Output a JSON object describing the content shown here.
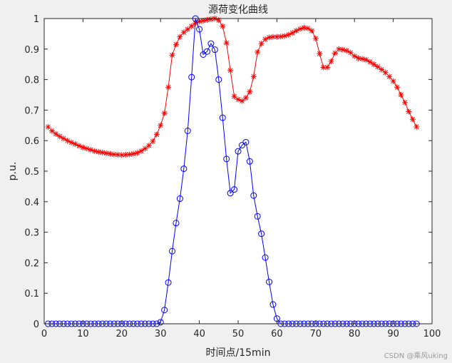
{
  "chart_data": {
    "type": "line",
    "title": "源荷变化曲线",
    "xlabel": "时间点/15min",
    "ylabel": "p.u.",
    "xlim": [
      0,
      100
    ],
    "ylim": [
      0,
      1
    ],
    "x_ticks": [
      "0",
      "10",
      "20",
      "30",
      "40",
      "50",
      "60",
      "70",
      "80",
      "90",
      "100"
    ],
    "y_ticks": [
      "0",
      "0.1",
      "0.2",
      "0.3",
      "0.4",
      "0.5",
      "0.6",
      "0.7",
      "0.8",
      "0.9",
      "1"
    ],
    "grid": false,
    "legend": "none",
    "x": [
      1,
      2,
      3,
      4,
      5,
      6,
      7,
      8,
      9,
      10,
      11,
      12,
      13,
      14,
      15,
      16,
      17,
      18,
      19,
      20,
      21,
      22,
      23,
      24,
      25,
      26,
      27,
      28,
      29,
      30,
      31,
      32,
      33,
      34,
      35,
      36,
      37,
      38,
      39,
      40,
      41,
      42,
      43,
      44,
      45,
      46,
      47,
      48,
      49,
      50,
      51,
      52,
      53,
      54,
      55,
      56,
      57,
      58,
      59,
      60,
      61,
      62,
      63,
      64,
      65,
      66,
      67,
      68,
      69,
      70,
      71,
      72,
      73,
      74,
      75,
      76,
      77,
      78,
      79,
      80,
      81,
      82,
      83,
      84,
      85,
      86,
      87,
      88,
      89,
      90,
      91,
      92,
      93,
      94,
      95,
      96
    ],
    "series": [
      {
        "color": "#ff0000",
        "marker": "asterisk",
        "values": [
          0.645,
          0.632,
          0.622,
          0.614,
          0.607,
          0.6,
          0.594,
          0.589,
          0.583,
          0.578,
          0.574,
          0.57,
          0.566,
          0.563,
          0.561,
          0.559,
          0.557,
          0.555,
          0.554,
          0.553,
          0.554,
          0.555,
          0.557,
          0.56,
          0.566,
          0.574,
          0.584,
          0.598,
          0.62,
          0.65,
          0.69,
          0.775,
          0.88,
          0.915,
          0.94,
          0.955,
          0.965,
          0.975,
          0.985,
          0.99,
          0.993,
          0.996,
          0.998,
          1.0,
          0.995,
          0.975,
          0.92,
          0.83,
          0.745,
          0.735,
          0.73,
          0.74,
          0.76,
          0.81,
          0.89,
          0.918,
          0.932,
          0.938,
          0.94,
          0.94,
          0.941,
          0.943,
          0.947,
          0.953,
          0.96,
          0.966,
          0.97,
          0.968,
          0.96,
          0.935,
          0.885,
          0.84,
          0.84,
          0.86,
          0.887,
          0.9,
          0.898,
          0.895,
          0.888,
          0.877,
          0.87,
          0.868,
          0.865,
          0.858,
          0.85,
          0.842,
          0.833,
          0.823,
          0.81,
          0.795,
          0.775,
          0.75,
          0.725,
          0.695,
          0.67,
          0.645
        ]
      },
      {
        "color": "#0000ff",
        "marker": "circle",
        "values": [
          0,
          0,
          0,
          0,
          0,
          0,
          0,
          0,
          0,
          0,
          0,
          0,
          0,
          0,
          0,
          0,
          0,
          0,
          0,
          0,
          0,
          0,
          0,
          0,
          0,
          0,
          0,
          0,
          0,
          0.005,
          0.045,
          0.135,
          0.238,
          0.33,
          0.41,
          0.508,
          0.632,
          0.808,
          1.0,
          0.965,
          0.882,
          0.892,
          0.918,
          0.898,
          0.8,
          0.675,
          0.54,
          0.428,
          0.44,
          0.565,
          0.585,
          0.595,
          0.532,
          0.42,
          0.352,
          0.295,
          0.217,
          0.137,
          0.063,
          0.017,
          0,
          0,
          0,
          0,
          0,
          0,
          0,
          0,
          0,
          0,
          0,
          0,
          0,
          0,
          0,
          0,
          0,
          0,
          0,
          0,
          0,
          0,
          0,
          0,
          0,
          0,
          0,
          0,
          0,
          0,
          0,
          0,
          0,
          0,
          0,
          0
        ]
      }
    ]
  },
  "watermark": "CSDN @乘风uking"
}
